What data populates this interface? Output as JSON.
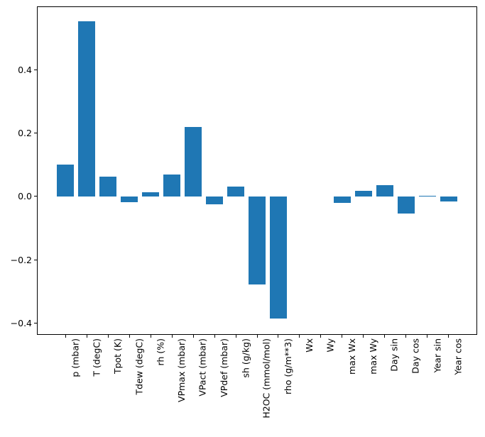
{
  "chart_data": {
    "type": "bar",
    "title": "",
    "xlabel": "",
    "ylabel": "",
    "categories": [
      "p (mbar)",
      "T (degC)",
      "Tpot (K)",
      "Tdew (degC)",
      "rh (%)",
      "VPmax (mbar)",
      "VPact (mbar)",
      "VPdef (mbar)",
      "sh (g/kg)",
      "H2OC (mmol/mol)",
      "rho (g/m**3)",
      "Wx",
      "Wy",
      "max Wx",
      "max Wy",
      "Day sin",
      "Day cos",
      "Year sin",
      "Year cos"
    ],
    "values": [
      0.1,
      0.552,
      0.063,
      -0.018,
      0.013,
      0.069,
      0.219,
      -0.025,
      0.032,
      -0.277,
      -0.385,
      0.0,
      0.0,
      -0.021,
      0.017,
      0.035,
      -0.054,
      0.003,
      -0.017
    ],
    "ylim": [
      -0.437,
      0.6
    ],
    "yticks": [
      0.4,
      0.2,
      0.0,
      -0.2,
      -0.4
    ],
    "ytick_labels": [
      "0.4",
      "0.2",
      "0.0",
      "−0.2",
      "−0.4"
    ],
    "x_tick_rotation_deg": 90,
    "bar_color": "#1f77b4",
    "axis_color": "#000000",
    "background_color": "#ffffff",
    "grid": false,
    "legend": "none"
  }
}
